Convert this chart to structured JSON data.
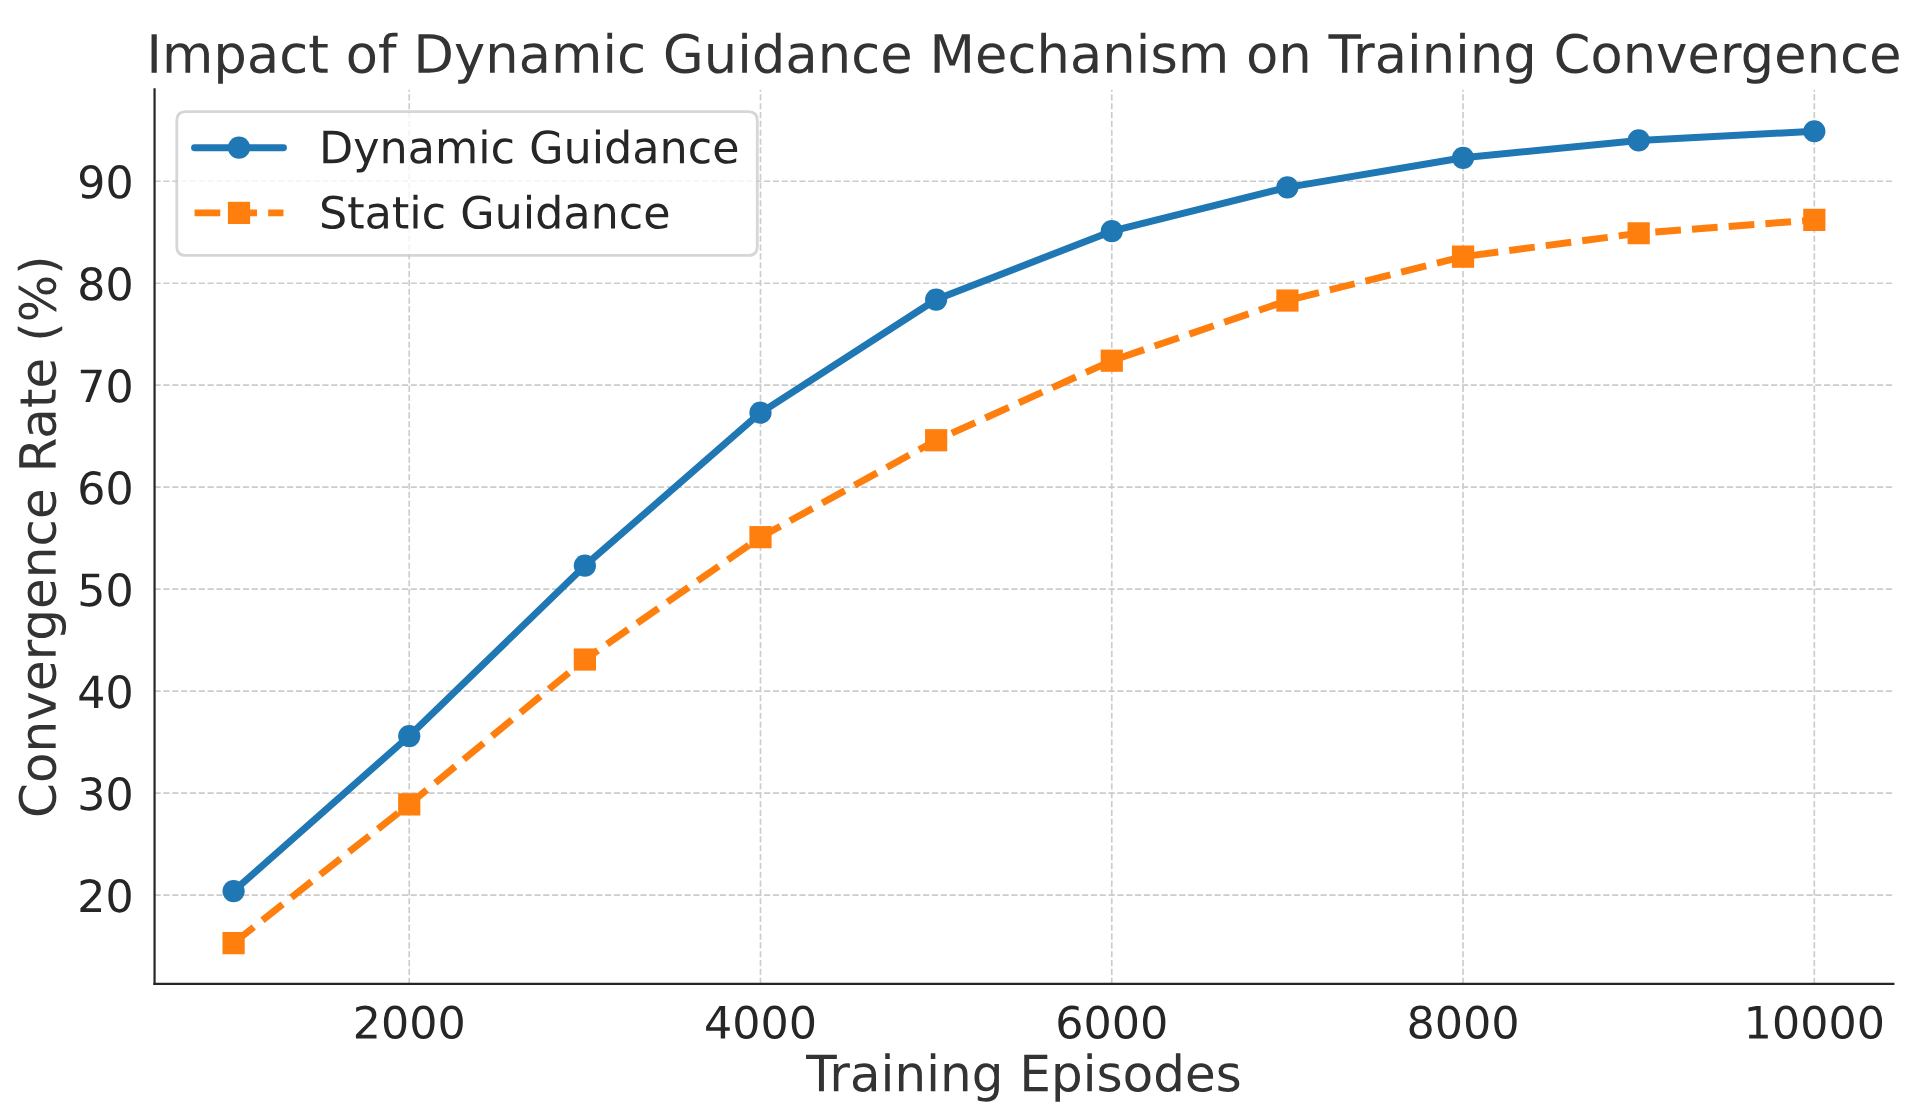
{
  "chart_data": {
    "type": "line",
    "title": "Impact of Dynamic Guidance Mechanism on Training Convergence",
    "xlabel": "Training Episodes",
    "ylabel": "Convergence Rate (%)",
    "x": [
      1000,
      2000,
      3000,
      4000,
      5000,
      6000,
      7000,
      8000,
      9000,
      10000
    ],
    "series": [
      {
        "name": "Dynamic Guidance",
        "color": "#1f77b4",
        "marker": "circle",
        "line_style": "solid",
        "values": [
          20.4,
          35.6,
          52.3,
          67.3,
          78.4,
          85.1,
          89.4,
          92.3,
          94.0,
          94.9
        ]
      },
      {
        "name": "Static Guidance",
        "color": "#ff7f0e",
        "marker": "square",
        "line_style": "dashed",
        "values": [
          15.3,
          28.9,
          43.1,
          55.1,
          64.6,
          72.4,
          78.3,
          82.6,
          84.9,
          86.2
        ]
      }
    ],
    "xlim": [
      550,
      10450
    ],
    "xticks": [
      2000,
      4000,
      6000,
      8000,
      10000
    ],
    "ylim": [
      11.3,
      99
    ],
    "yticks": [
      20,
      30,
      40,
      50,
      60,
      70,
      80,
      90
    ],
    "grid": true,
    "legend": "top left"
  }
}
